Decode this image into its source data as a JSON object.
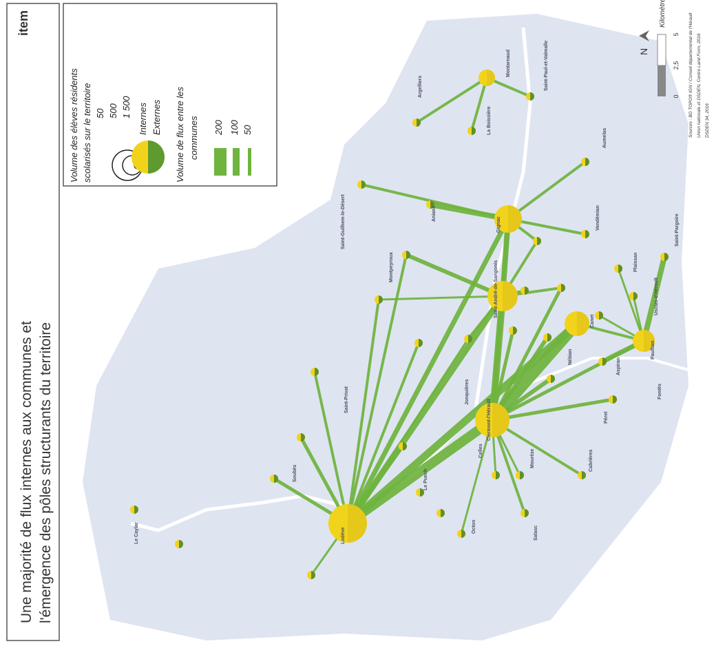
{
  "logo": "item",
  "title": [
    "Une majorité de flux internes aux communes et",
    "l'émergence des pôles structurants du territoire"
  ],
  "legend": {
    "size_title": [
      "Volume des élèves résidents",
      "scolarisés sur le territoire"
    ],
    "sizes": [
      "50",
      "500",
      "1 500"
    ],
    "internes": "Internes",
    "externes": "Externes",
    "flow_title": [
      "Volume de flux entre les",
      "communes"
    ],
    "flows": [
      "200",
      "100",
      "50"
    ]
  },
  "scale": {
    "ticks": [
      "0",
      "2,5",
      "5"
    ],
    "unit": "Kilomètres",
    "north": "N"
  },
  "sources": [
    "Sources : BD TOPO® IGN / Conseil départemental de l'Hérault",
    "Union nationale et DSDEN, Centre Land Form, 2016",
    "DSDEN 34, 2016"
  ],
  "places": [
    "Lodève",
    "Clermont-l'Hérault",
    "Saint-André-de-Sangonis",
    "Gignac",
    "Montarnaud",
    "Paulhan",
    "Canet",
    "Aniane",
    "Argelliers",
    "La Boissière",
    "Saint-Paul-et-Valmalle",
    "Saint-Guilhem-le-Désert",
    "Octon",
    "Salasc",
    "Mourèze",
    "Cabrières",
    "Péret",
    "Fontès",
    "Nébian",
    "Aspiran",
    "Saint-Pargoire",
    "Plaissan",
    "Vendémian",
    "Aumelas",
    "Usclas-d'Hérault",
    "Le Caylar",
    "Soubès",
    "Saint-Privat",
    "Montpeyroux",
    "Jonquières",
    "Celles",
    "Le Puech"
  ]
}
